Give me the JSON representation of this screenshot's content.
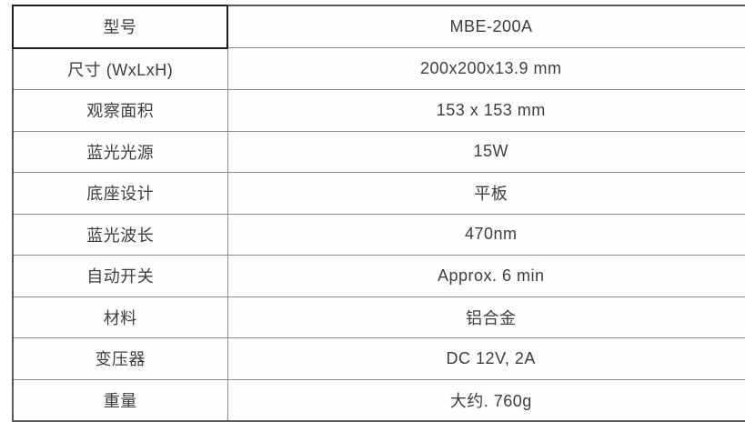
{
  "colors": {
    "text": "#3d3d3d",
    "border_inner": "#8c8c8c",
    "border_outer": "#595959",
    "header_cell_border": "#1f1f1f",
    "background": "#ffffff"
  },
  "table": {
    "rows": [
      {
        "label": "型号",
        "value": "MBE-200A"
      },
      {
        "label": "尺寸 (WxLxH)",
        "value": "200x200x13.9 mm"
      },
      {
        "label": "观察面积",
        "value": "153 x 153 mm"
      },
      {
        "label": "蓝光光源",
        "value": "15W"
      },
      {
        "label": "底座设计",
        "value": "平板"
      },
      {
        "label": "蓝光波长",
        "value": "470nm"
      },
      {
        "label": "自动开关",
        "value": "Approx. 6 min"
      },
      {
        "label": "材料",
        "value": "铝合金"
      },
      {
        "label": "变压器",
        "value": "DC 12V, 2A"
      },
      {
        "label": "重量",
        "value": "大约. 760g"
      }
    ]
  }
}
